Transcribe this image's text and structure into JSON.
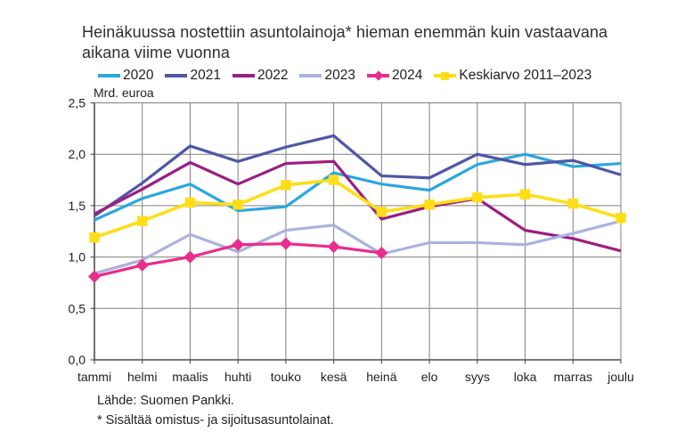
{
  "title_lines": [
    "Heinäkuussa nostettiin asuntolainoja* hieman enemmän kuin vastaavana",
    "aikana viime vuonna"
  ],
  "y_axis": {
    "title": "Mrd. euroa",
    "tick_labels": [
      "2,5",
      "2,0",
      "1,5",
      "1,0",
      "0,5",
      "0,0"
    ],
    "tick_values": [
      2.5,
      2.0,
      1.5,
      1.0,
      0.5,
      0.0
    ]
  },
  "footer": {
    "source": "Lähde: Suomen Pankki.",
    "footnote": "* Sisältää omistus- ja sijoitusasuntolainat."
  },
  "colors": {
    "gridline": "#808080",
    "axis": "#4d4d4d",
    "text": "#1f1f1f"
  },
  "chart_data": {
    "type": "line",
    "title": "Heinäkuussa nostettiin asuntolainoja* hieman enemmän kuin vastaavana aikana viime vuonna",
    "ylabel": "Mrd. euroa",
    "ylim": [
      0,
      2.5
    ],
    "y_step": 0.5,
    "grid": true,
    "legend_position": "top",
    "categories": [
      "tammi",
      "helmi",
      "maalis",
      "huhti",
      "touko",
      "kesä",
      "heinä",
      "elo",
      "syys",
      "loka",
      "marras",
      "joulu"
    ],
    "series": [
      {
        "name": "2020",
        "color": "#29A7DE",
        "marker": "none",
        "values": [
          1.36,
          1.57,
          1.71,
          1.45,
          1.49,
          1.82,
          1.71,
          1.65,
          1.9,
          2.0,
          1.88,
          1.91
        ]
      },
      {
        "name": "2021",
        "color": "#4E57A6",
        "marker": "none",
        "values": [
          1.4,
          1.72,
          2.08,
          1.93,
          2.07,
          2.18,
          1.79,
          1.77,
          2.0,
          1.9,
          1.94,
          1.8
        ]
      },
      {
        "name": "2022",
        "color": "#9C1E80",
        "marker": "none",
        "values": [
          1.42,
          1.66,
          1.92,
          1.71,
          1.91,
          1.93,
          1.37,
          1.49,
          1.57,
          1.26,
          1.18,
          1.06
        ]
      },
      {
        "name": "2023",
        "color": "#ABB2E0",
        "marker": "none",
        "values": [
          0.84,
          0.97,
          1.22,
          1.05,
          1.26,
          1.31,
          1.03,
          1.14,
          1.14,
          1.12,
          1.23,
          1.35
        ]
      },
      {
        "name": "2024",
        "color": "#E92D8C",
        "marker": "diamond",
        "values": [
          0.81,
          0.92,
          1.0,
          1.12,
          1.13,
          1.1,
          1.04
        ]
      },
      {
        "name": "Keskiarvo 2011–2023",
        "color": "#FFDE17",
        "marker": "square",
        "values": [
          1.19,
          1.35,
          1.53,
          1.51,
          1.7,
          1.75,
          1.44,
          1.51,
          1.58,
          1.61,
          1.52,
          1.38
        ]
      }
    ]
  }
}
